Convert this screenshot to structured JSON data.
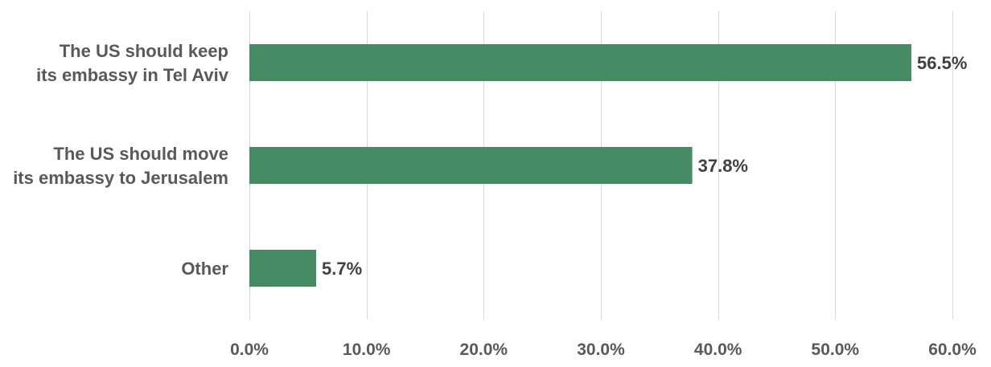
{
  "chart_data": {
    "type": "bar",
    "orientation": "horizontal",
    "categories": [
      [
        "The US should keep",
        "its embassy in Tel Aviv"
      ],
      [
        "The US should move",
        "its embassy to Jerusalem"
      ],
      [
        "Other"
      ]
    ],
    "values": [
      56.5,
      37.8,
      5.7
    ],
    "value_labels": [
      "56.5%",
      "37.8%",
      "5.7%"
    ],
    "xlim": [
      0,
      60
    ],
    "xticks": [
      0,
      10,
      20,
      30,
      40,
      50,
      60
    ],
    "xtick_labels": [
      "0.0%",
      "10.0%",
      "20.0%",
      "30.0%",
      "40.0%",
      "50.0%",
      "60.0%"
    ],
    "title": "",
    "xlabel": "",
    "ylabel": "",
    "grid": "vertical",
    "legend": "none",
    "bar_color": "#468b64",
    "gridline_color": "#d9d9d9",
    "label_color": "#595959"
  }
}
